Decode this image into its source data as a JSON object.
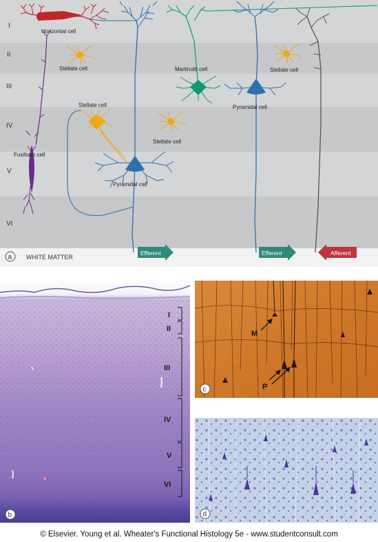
{
  "panel_a": {
    "letter": "a",
    "layers": [
      "I",
      "II",
      "III",
      "IV",
      "V",
      "VI"
    ],
    "white_matter": "WHITE MATTER",
    "cells": {
      "horizontal": "Horizontal cell",
      "stellate_top": "Stellate cell",
      "martinotti": "Martinotti cell",
      "stellate_right": "Stellate cell",
      "pyramidal_right": "Pyramidal cell",
      "stellate_mid": "Stellate cell",
      "fusiform": "Fusiform cell",
      "stellate_center": "Stellate cell",
      "pyramidal_left": "Pyramidal cell"
    },
    "arrows": {
      "efferent_left": "Efferent",
      "efferent_right": "Efferent",
      "afferent": "Afferent"
    },
    "colors": {
      "horizontal": "#c0272d",
      "stellate": "#f0a818",
      "martinotti": "#0e9a6e",
      "pyramidal": "#2e6fb0",
      "fusiform": "#6a2a8a",
      "afferent": "#555555",
      "efferent_arrow": "#2f8a7a",
      "afferent_arrow": "#c0343c"
    }
  },
  "panel_b": {
    "letter": "b",
    "layers": [
      "I",
      "II",
      "III",
      "IV",
      "V",
      "VI"
    ]
  },
  "panel_c": {
    "letter": "c",
    "label_m": "M",
    "label_p": "P"
  },
  "panel_d": {
    "letter": "d"
  },
  "footer": "© Elsevier. Young et al. Wheater's Functional Histology 5e - www.studentconsult.com"
}
